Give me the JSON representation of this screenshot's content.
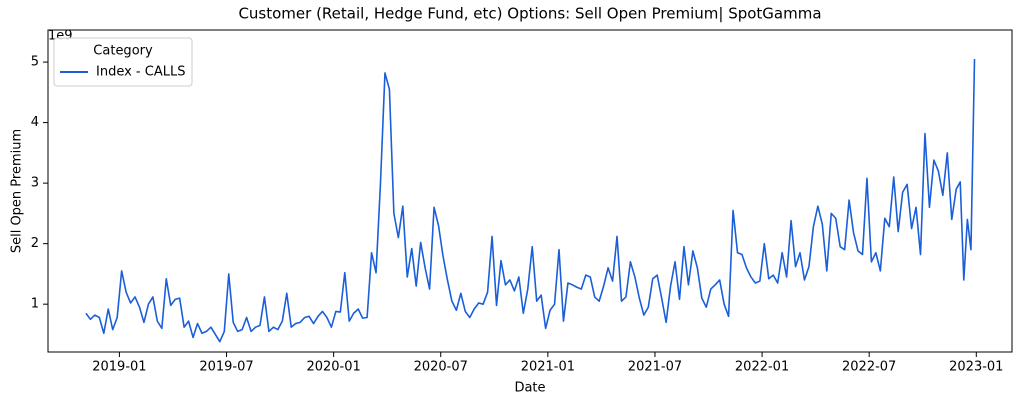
{
  "chart_data": {
    "type": "line",
    "title": "Customer (Retail, Hedge Fund, etc) Options: Sell Open Premium| SpotGamma",
    "x_label": "Date",
    "y_label": "Sell Open Premium",
    "offset_text": "1e9",
    "legend_title": "Category",
    "legend": "upper left",
    "x": [
      "2018-11",
      "2018-11",
      "2018-11",
      "2018-11",
      "2018-12",
      "2018-12",
      "2018-12",
      "2018-12",
      "2019-01",
      "2019-01",
      "2019-01",
      "2019-01",
      "2019-02",
      "2019-02",
      "2019-02",
      "2019-02",
      "2019-03",
      "2019-03",
      "2019-03",
      "2019-03",
      "2019-04",
      "2019-04",
      "2019-04",
      "2019-04",
      "2019-05",
      "2019-05",
      "2019-05",
      "2019-05",
      "2019-06",
      "2019-06",
      "2019-06",
      "2019-06",
      "2019-07",
      "2019-07",
      "2019-07",
      "2019-07",
      "2019-08",
      "2019-08",
      "2019-08",
      "2019-08",
      "2019-09",
      "2019-09",
      "2019-09",
      "2019-09",
      "2019-10",
      "2019-10",
      "2019-10",
      "2019-10",
      "2019-11",
      "2019-11",
      "2019-11",
      "2019-11",
      "2019-12",
      "2019-12",
      "2019-12",
      "2019-12",
      "2020-01",
      "2020-01",
      "2020-01",
      "2020-01",
      "2020-02",
      "2020-02",
      "2020-02",
      "2020-02",
      "2020-03",
      "2020-03",
      "2020-03",
      "2020-03",
      "2020-04",
      "2020-04",
      "2020-04",
      "2020-04",
      "2020-05",
      "2020-05",
      "2020-05",
      "2020-05",
      "2020-06",
      "2020-06",
      "2020-06",
      "2020-06",
      "2020-07",
      "2020-07",
      "2020-07",
      "2020-07",
      "2020-08",
      "2020-08",
      "2020-08",
      "2020-08",
      "2020-09",
      "2020-09",
      "2020-09",
      "2020-09",
      "2020-10",
      "2020-10",
      "2020-10",
      "2020-10",
      "2020-11",
      "2020-11",
      "2020-11",
      "2020-11",
      "2020-12",
      "2020-12",
      "2020-12",
      "2020-12",
      "2021-01",
      "2021-01",
      "2021-01",
      "2021-01",
      "2021-02",
      "2021-02",
      "2021-02",
      "2021-02",
      "2021-03",
      "2021-03",
      "2021-03",
      "2021-03",
      "2021-04",
      "2021-04",
      "2021-04",
      "2021-04",
      "2021-05",
      "2021-05",
      "2021-05",
      "2021-05",
      "2021-06",
      "2021-06",
      "2021-06",
      "2021-06",
      "2021-07",
      "2021-07",
      "2021-07",
      "2021-07",
      "2021-08",
      "2021-08",
      "2021-08",
      "2021-08",
      "2021-09",
      "2021-09",
      "2021-09",
      "2021-09",
      "2021-10",
      "2021-10",
      "2021-10",
      "2021-10",
      "2021-11",
      "2021-11",
      "2021-11",
      "2021-11",
      "2021-12",
      "2021-12",
      "2021-12",
      "2021-12",
      "2022-01",
      "2022-01",
      "2022-01",
      "2022-01",
      "2022-02",
      "2022-02",
      "2022-02",
      "2022-02",
      "2022-03",
      "2022-03",
      "2022-03",
      "2022-03",
      "2022-04",
      "2022-04",
      "2022-04",
      "2022-04",
      "2022-05",
      "2022-05",
      "2022-05",
      "2022-05",
      "2022-06",
      "2022-06",
      "2022-06",
      "2022-06",
      "2022-07",
      "2022-07",
      "2022-07",
      "2022-07",
      "2022-08",
      "2022-08",
      "2022-08",
      "2022-08",
      "2022-09",
      "2022-09",
      "2022-09",
      "2022-09",
      "2022-10",
      "2022-10",
      "2022-10",
      "2022-10",
      "2022-11",
      "2022-11",
      "2022-11",
      "2022-11",
      "2022-12",
      "2022-12",
      "2022-12",
      "2022-12",
      "2022-12"
    ],
    "series": [
      {
        "name": "Index - CALLS",
        "color": "#1a5fd9",
        "values": [
          0.85,
          0.75,
          0.82,
          0.78,
          0.52,
          0.92,
          0.58,
          0.78,
          1.55,
          1.2,
          1.02,
          1.12,
          0.95,
          0.7,
          1.0,
          1.12,
          0.72,
          0.6,
          1.42,
          0.98,
          1.08,
          1.1,
          0.62,
          0.72,
          0.45,
          0.68,
          0.52,
          0.55,
          0.62,
          0.5,
          0.38,
          0.55,
          1.5,
          0.7,
          0.55,
          0.58,
          0.78,
          0.55,
          0.62,
          0.65,
          1.12,
          0.55,
          0.62,
          0.58,
          0.72,
          1.18,
          0.62,
          0.68,
          0.7,
          0.78,
          0.8,
          0.68,
          0.8,
          0.88,
          0.78,
          0.62,
          0.88,
          0.87,
          1.52,
          0.72,
          0.85,
          0.92,
          0.77,
          0.78,
          1.85,
          1.52,
          3.0,
          4.82,
          4.55,
          2.5,
          2.1,
          2.62,
          1.45,
          1.92,
          1.3,
          2.02,
          1.6,
          1.25,
          2.6,
          2.3,
          1.8,
          1.4,
          1.05,
          0.9,
          1.18,
          0.88,
          0.78,
          0.92,
          1.02,
          1.0,
          1.2,
          2.12,
          0.98,
          1.72,
          1.32,
          1.4,
          1.22,
          1.45,
          0.85,
          1.25,
          1.95,
          1.05,
          1.15,
          0.6,
          0.9,
          1.0,
          1.9,
          0.72,
          1.35,
          1.32,
          1.28,
          1.25,
          1.48,
          1.45,
          1.12,
          1.05,
          1.3,
          1.6,
          1.38,
          2.12,
          1.05,
          1.12,
          1.7,
          1.45,
          1.1,
          0.82,
          0.95,
          1.42,
          1.48,
          1.1,
          0.7,
          1.3,
          1.7,
          1.08,
          1.95,
          1.32,
          1.88,
          1.6,
          1.1,
          0.95,
          1.25,
          1.32,
          1.4,
          1.0,
          0.8,
          2.55,
          1.85,
          1.82,
          1.6,
          1.45,
          1.35,
          1.38,
          2.0,
          1.42,
          1.48,
          1.35,
          1.85,
          1.45,
          2.38,
          1.62,
          1.85,
          1.4,
          1.62,
          2.28,
          2.62,
          2.32,
          1.55,
          2.5,
          2.42,
          1.95,
          1.9,
          2.72,
          2.18,
          1.88,
          1.82,
          3.08,
          1.7,
          1.85,
          1.55,
          2.42,
          2.28,
          3.1,
          2.2,
          2.85,
          2.98,
          2.25,
          2.6,
          1.82,
          3.82,
          2.6,
          3.38,
          3.2,
          2.8,
          3.5,
          2.4,
          2.9,
          3.02,
          1.4,
          2.4,
          1.9,
          5.05
        ]
      }
    ],
    "xlim": [
      "2018-09",
      "2023-03"
    ],
    "xticks": [
      "2019-01",
      "2019-07",
      "2020-01",
      "2020-07",
      "2021-01",
      "2021-07",
      "2022-01",
      "2022-07",
      "2023-01"
    ],
    "ylim": [
      0.21,
      5.53
    ],
    "yticks": [
      1,
      2,
      3,
      4,
      5
    ]
  }
}
